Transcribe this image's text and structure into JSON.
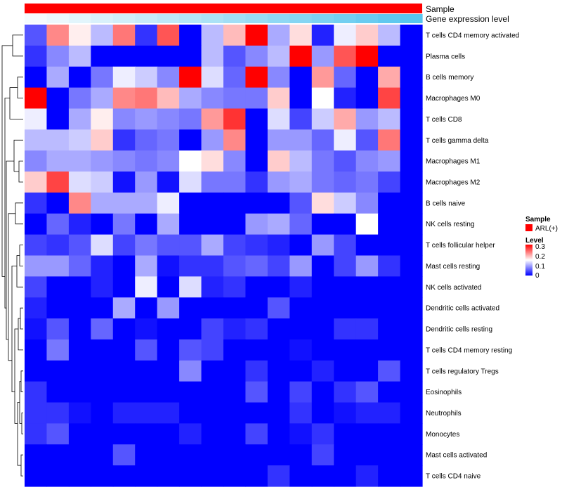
{
  "chart_data": {
    "type": "heatmap",
    "title": "",
    "column_annotations": [
      {
        "label": "Sample",
        "kind": "categorical",
        "color": "#FF0000"
      },
      {
        "label": "Gene expression level",
        "kind": "gradient",
        "color_low": "#F5FBFE",
        "color_high": "#57C5EE"
      }
    ],
    "rows": [
      "T cells CD4 memory activated",
      "Plasma cells",
      "B cells memory",
      "Macrophages M0",
      "T cells CD8",
      "T cells gamma delta",
      "Macrophages M1",
      "Macrophages M2",
      "B cells naive",
      "NK cells resting",
      "T cells follicular helper",
      "Mast cells resting",
      "NK cells activated",
      "Dendritic cells activated",
      "Dendritic cells resting",
      "T cells CD4 memory resting",
      "T cells regulatory  Tregs",
      "Eosinophils",
      "Neutrophils",
      "Monocytes",
      "Mast cells activated",
      "T cells CD4 naive"
    ],
    "n_columns": 18,
    "values": [
      [
        0.05,
        0.22,
        0.16,
        0.11,
        0.23,
        0.03,
        0.25,
        0.0,
        0.11,
        0.19,
        0.3,
        0.1,
        0.17,
        0.02,
        0.14,
        0.18,
        0.11,
        null
      ],
      [
        0.03,
        0.08,
        0.11,
        0.0,
        0.0,
        0.0,
        0.0,
        0.0,
        0.11,
        0.05,
        0.08,
        0.11,
        0.3,
        0.09,
        0.25,
        0.3,
        0.0,
        null
      ],
      [
        0.0,
        0.1,
        0.0,
        0.07,
        0.14,
        0.12,
        0.08,
        0.3,
        0.13,
        0.06,
        0.3,
        0.08,
        0.0,
        0.21,
        0.06,
        0.0,
        0.2,
        null
      ],
      [
        0.3,
        0.0,
        0.07,
        0.1,
        0.22,
        0.23,
        0.19,
        0.1,
        0.08,
        0.07,
        0.07,
        0.18,
        0.0,
        0.15,
        0.02,
        0.0,
        0.26,
        null
      ],
      [
        0.14,
        0.0,
        0.1,
        0.16,
        0.08,
        0.09,
        0.08,
        0.07,
        0.21,
        0.27,
        0.0,
        0.13,
        0.04,
        0.12,
        0.2,
        0.09,
        0.11,
        null
      ],
      [
        0.11,
        0.11,
        0.12,
        0.18,
        0.03,
        0.06,
        0.07,
        0.0,
        0.09,
        0.22,
        0.0,
        0.09,
        0.09,
        0.06,
        0.14,
        0.05,
        0.23,
        null
      ],
      [
        0.08,
        0.1,
        0.1,
        0.09,
        0.08,
        0.07,
        0.08,
        0.15,
        0.17,
        0.08,
        0.0,
        0.18,
        0.11,
        0.07,
        0.05,
        0.08,
        0.09,
        null
      ],
      [
        0.18,
        0.26,
        0.13,
        0.12,
        0.01,
        0.09,
        0.01,
        0.13,
        0.07,
        0.07,
        0.03,
        0.09,
        0.1,
        0.07,
        0.06,
        0.07,
        0.04,
        null
      ],
      [
        0.03,
        0.0,
        0.22,
        0.1,
        0.1,
        0.1,
        0.14,
        0.0,
        0.0,
        0.0,
        0.0,
        0.0,
        0.05,
        0.17,
        0.12,
        0.08,
        0.0,
        null
      ],
      [
        0.0,
        0.06,
        0.02,
        0.0,
        0.07,
        0.0,
        0.1,
        0.0,
        0.0,
        0.0,
        0.09,
        0.1,
        0.06,
        0.0,
        0.0,
        0.15,
        0.0,
        null
      ],
      [
        0.04,
        0.03,
        0.05,
        0.13,
        0.04,
        0.07,
        0.05,
        0.05,
        0.1,
        0.04,
        0.03,
        0.02,
        0.0,
        0.09,
        0.04,
        0.0,
        0.0,
        null
      ],
      [
        0.09,
        0.09,
        0.06,
        0.02,
        0.0,
        0.1,
        0.01,
        0.03,
        0.03,
        0.05,
        0.06,
        0.04,
        0.09,
        0.0,
        0.04,
        0.09,
        0.03,
        null
      ],
      [
        0.04,
        0.0,
        0.0,
        0.02,
        0.0,
        0.14,
        0.0,
        0.13,
        0.02,
        0.03,
        0.0,
        0.0,
        0.02,
        0.0,
        0.0,
        0.0,
        0.0,
        null
      ],
      [
        0.02,
        0.0,
        0.0,
        0.0,
        0.1,
        0.0,
        0.09,
        0.0,
        0.0,
        0.0,
        0.0,
        0.05,
        0.0,
        0.0,
        0.0,
        0.0,
        0.0,
        null
      ],
      [
        0.01,
        0.05,
        0.0,
        0.06,
        0.0,
        0.01,
        0.0,
        0.0,
        0.04,
        0.02,
        0.03,
        0.0,
        0.0,
        0.0,
        0.03,
        0.03,
        0.0,
        null
      ],
      [
        0.0,
        0.07,
        0.0,
        0.0,
        0.0,
        0.05,
        0.0,
        0.05,
        0.04,
        0.0,
        0.0,
        0.0,
        0.01,
        0.0,
        0.0,
        0.0,
        0.0,
        null
      ],
      [
        0.0,
        0.0,
        0.0,
        0.0,
        0.0,
        0.0,
        0.0,
        0.08,
        0.0,
        0.0,
        0.03,
        0.0,
        0.0,
        0.02,
        0.0,
        0.0,
        0.05,
        null
      ],
      [
        0.03,
        0.0,
        0.0,
        0.0,
        0.0,
        0.0,
        0.0,
        0.0,
        0.0,
        0.0,
        0.05,
        0.0,
        0.04,
        0.0,
        0.03,
        0.05,
        0.0,
        null
      ],
      [
        0.03,
        0.03,
        0.01,
        0.0,
        0.02,
        0.02,
        0.02,
        0.0,
        0.0,
        0.0,
        0.0,
        0.0,
        0.03,
        0.0,
        0.01,
        0.02,
        0.02,
        null
      ],
      [
        0.03,
        0.05,
        0.0,
        0.0,
        0.0,
        0.0,
        0.0,
        0.02,
        0.0,
        0.0,
        0.04,
        0.0,
        0.01,
        0.03,
        0.0,
        0.0,
        0.0,
        null
      ],
      [
        0.0,
        0.0,
        0.0,
        0.0,
        0.05,
        0.0,
        0.0,
        0.0,
        0.0,
        0.0,
        0.0,
        0.0,
        0.0,
        0.04,
        0.0,
        0.0,
        0.0,
        null
      ],
      [
        0.0,
        0.0,
        0.0,
        0.0,
        0.0,
        0.0,
        0.0,
        0.0,
        0.0,
        0.0,
        0.0,
        0.03,
        0.0,
        0.0,
        0.0,
        0.02,
        0.0,
        null
      ]
    ],
    "legend": {
      "sample_title": "Sample",
      "sample_entries": [
        {
          "label": "ARL(+)",
          "color": "#FF0000"
        }
      ],
      "level_title": "Level",
      "level_ticks": [
        "0.3",
        "0.2",
        "0.1",
        "0"
      ],
      "level_range": [
        0,
        0.3
      ],
      "colors": {
        "low": "#0000FF",
        "mid": "#FFFFFF",
        "high": "#FF0000"
      }
    }
  }
}
